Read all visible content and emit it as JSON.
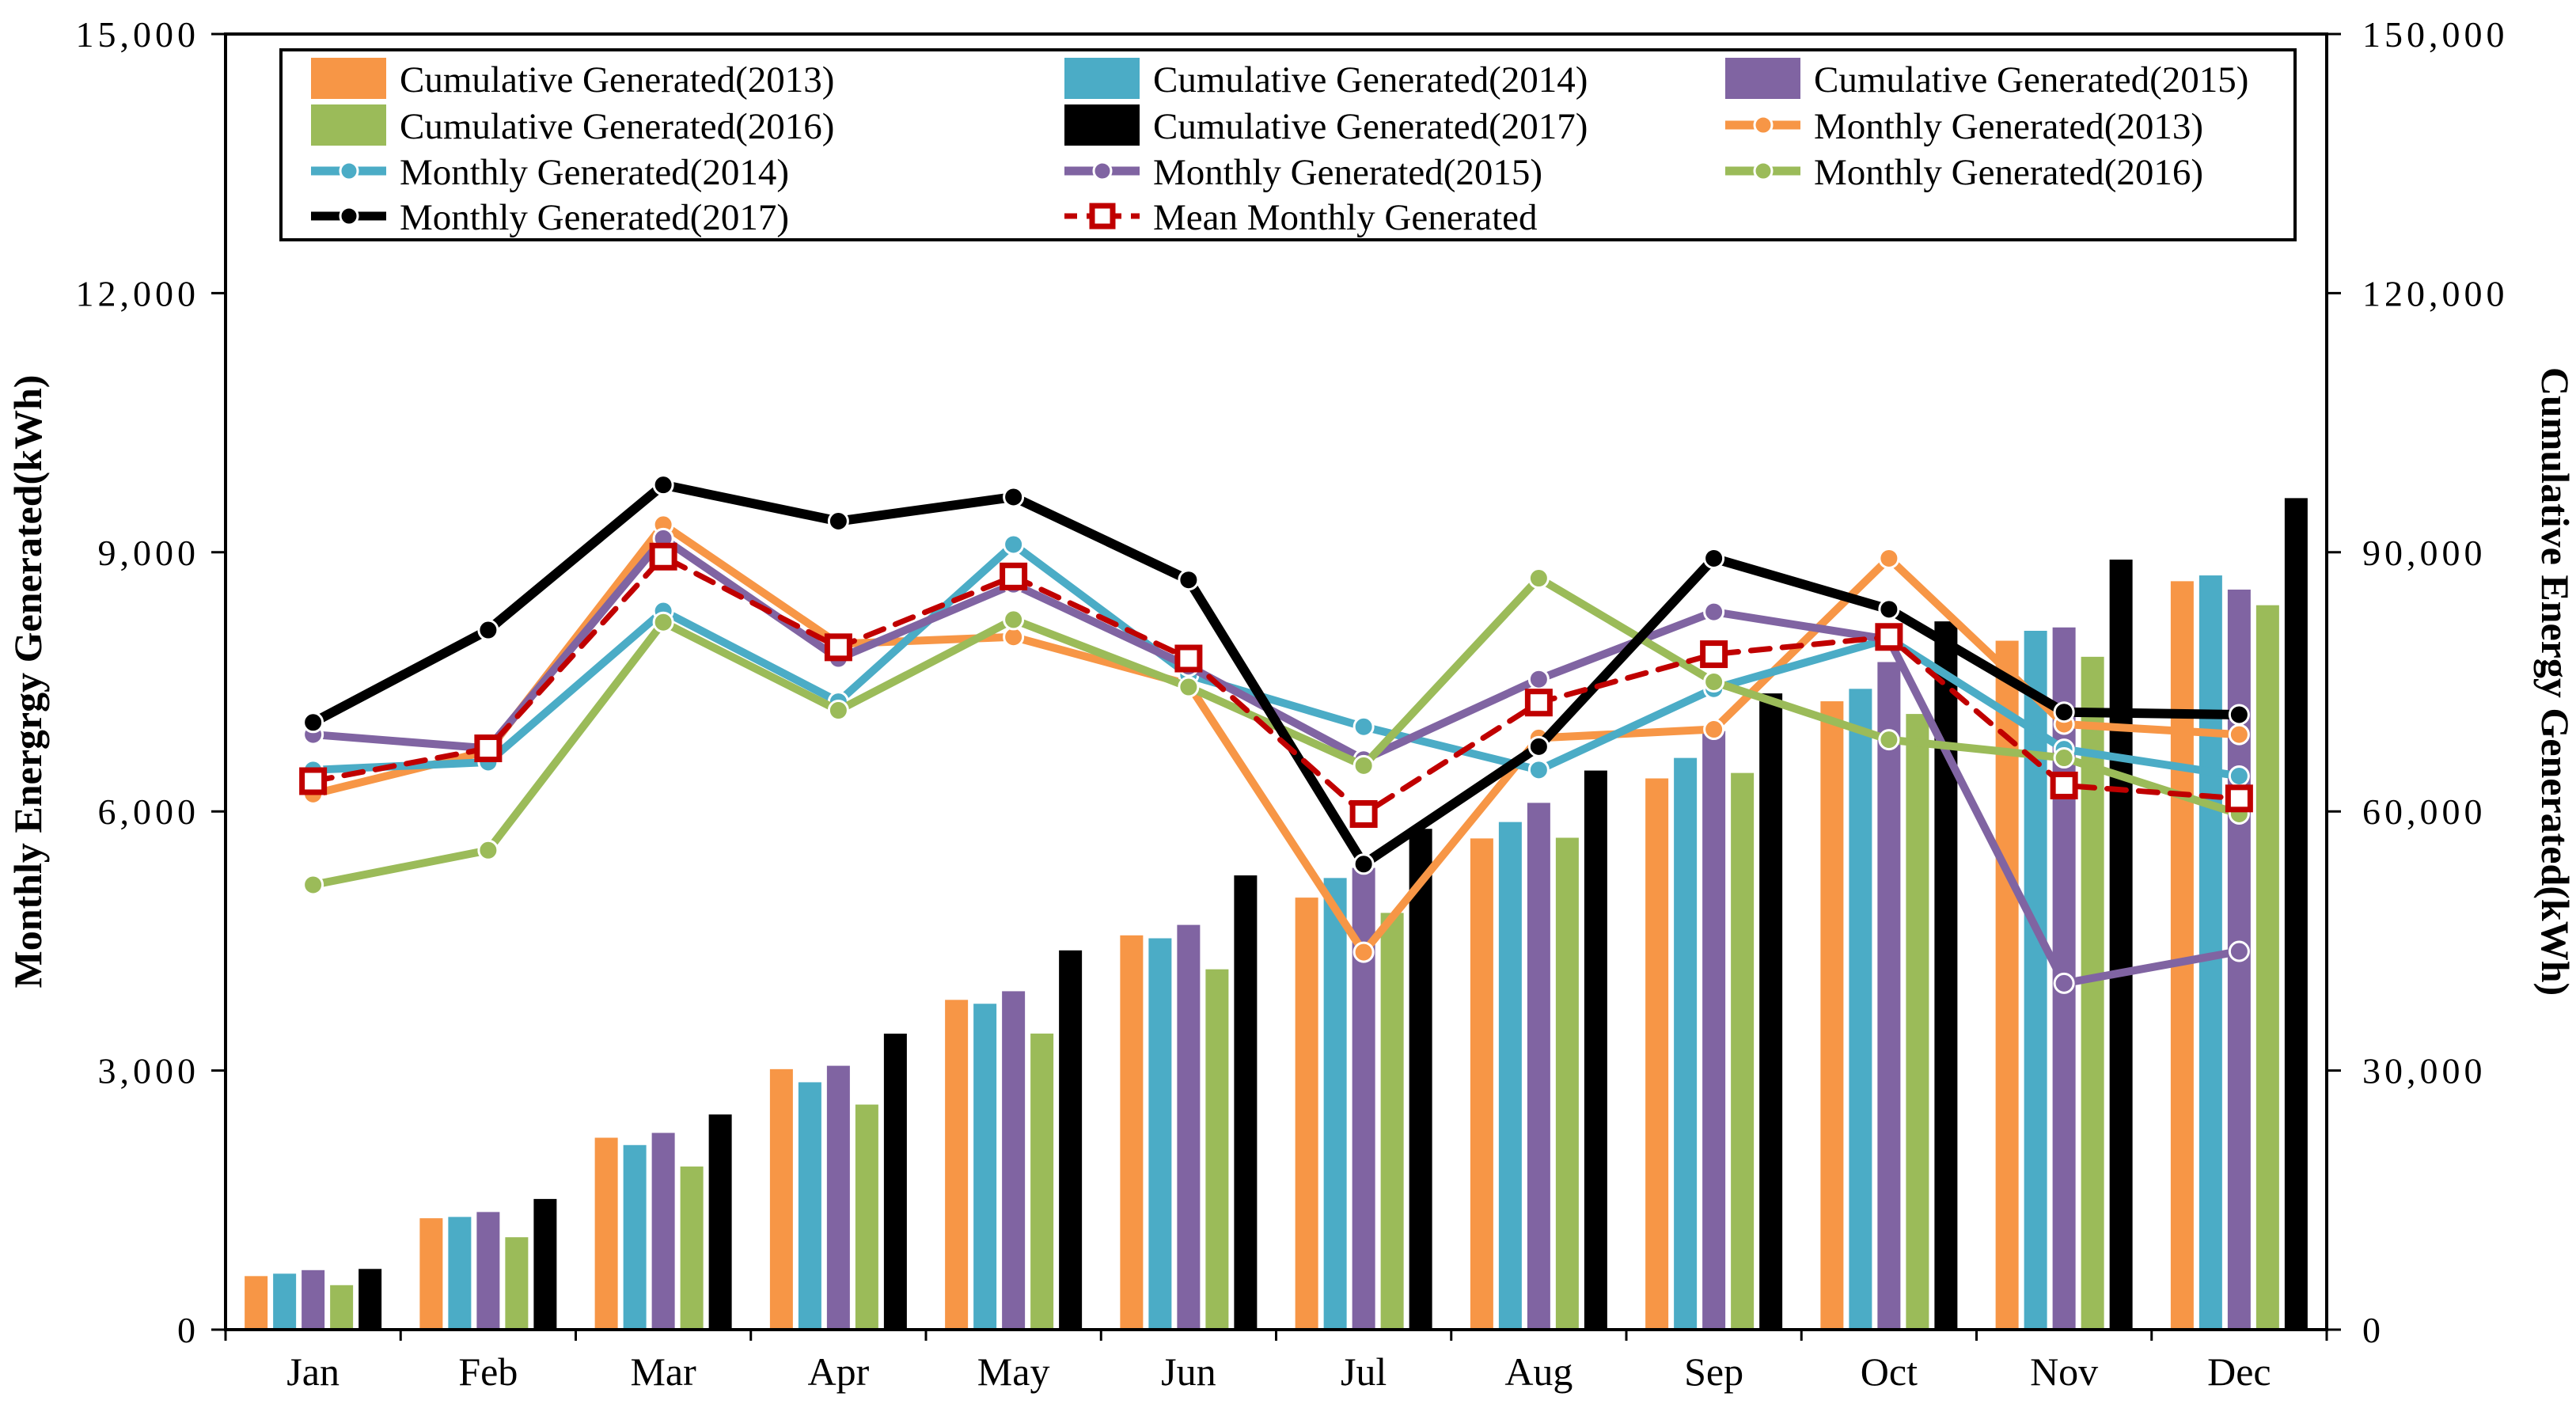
{
  "figure": {
    "background": "#FFFFFF"
  },
  "colors": {
    "y2013": "#F79646",
    "y2014": "#4BACC6",
    "y2015": "#8064A2",
    "y2016": "#9BBB59",
    "y2017": "#000000",
    "mean": "#C00000",
    "axis": "#000000"
  },
  "legend": {
    "rows": 4,
    "items": [
      {
        "label": "Cumulative Generated(2013)",
        "swatch": "bar",
        "color": "#F79646",
        "row": 0,
        "col": 0
      },
      {
        "label": "Cumulative Generated(2014)",
        "swatch": "bar",
        "color": "#4BACC6",
        "row": 0,
        "col": 1
      },
      {
        "label": "Cumulative Generated(2015)",
        "swatch": "bar",
        "color": "#8064A2",
        "row": 0,
        "col": 2
      },
      {
        "label": "Cumulative Generated(2016)",
        "swatch": "bar",
        "color": "#9BBB59",
        "row": 1,
        "col": 0
      },
      {
        "label": "Cumulative Generated(2017)",
        "swatch": "bar",
        "color": "#000000",
        "row": 1,
        "col": 1
      },
      {
        "label": "Monthly Generated(2013)",
        "swatch": "line",
        "color": "#F79646",
        "row": 1,
        "col": 2
      },
      {
        "label": "Monthly Generated(2014)",
        "swatch": "line",
        "color": "#4BACC6",
        "row": 2,
        "col": 0
      },
      {
        "label": "Monthly Generated(2015)",
        "swatch": "line",
        "color": "#8064A2",
        "row": 2,
        "col": 1
      },
      {
        "label": "Monthly Generated(2016)",
        "swatch": "line",
        "color": "#9BBB59",
        "row": 2,
        "col": 2
      },
      {
        "label": "Monthly Generated(2017)",
        "swatch": "line",
        "color": "#000000",
        "row": 3,
        "col": 0
      },
      {
        "label": "Mean Monthly Generated",
        "swatch": "mean",
        "color": "#C00000",
        "row": 3,
        "col": 1
      }
    ]
  },
  "chart_data": {
    "type": "combo bar+line",
    "categories": [
      "Jan",
      "Feb",
      "Mar",
      "Apr",
      "May",
      "Jun",
      "Jul",
      "Aug",
      "Sep",
      "Oct",
      "Nov",
      "Dec"
    ],
    "left_axis": {
      "label": "Monthly Energrgy Generated(kWh)",
      "min": 0,
      "max": 15000,
      "tick_step": 3000,
      "tick_labels": [
        "0",
        "3,000",
        "6,000",
        "9,000",
        "12,000",
        "15,000"
      ]
    },
    "right_axis": {
      "label": "Cumulative Energy Generated(kWh)",
      "min": 0,
      "max": 150000,
      "tick_step": 30000,
      "tick_labels": [
        "0",
        "30,000",
        "60,000",
        "90,000",
        "120,000",
        "150,000"
      ]
    },
    "grid": false,
    "legend_position": "top-inside",
    "bar_series": [
      {
        "name": "Cumulative Generated(2013)",
        "axis": "right",
        "color": "#F79646",
        "values": [
          6200,
          12900,
          22220,
          30160,
          38180,
          45650,
          50020,
          56870,
          63820,
          72750,
          79760,
          86650
        ]
      },
      {
        "name": "Cumulative Generated(2014)",
        "axis": "right",
        "color": "#4BACC6",
        "values": [
          6480,
          13050,
          21370,
          28640,
          37730,
          45310,
          52290,
          58770,
          66190,
          74190,
          80910,
          87320
        ]
      },
      {
        "name": "Cumulative Generated(2015)",
        "axis": "right",
        "color": "#8064A2",
        "values": [
          6890,
          13620,
          22780,
          30550,
          39180,
          46860,
          53460,
          60990,
          69300,
          77290,
          81300,
          85680
        ]
      },
      {
        "name": "Cumulative Generated(2016)",
        "axis": "right",
        "color": "#9BBB59",
        "values": [
          5150,
          10700,
          18890,
          26060,
          34280,
          41720,
          48250,
          56950,
          64450,
          71280,
          77900,
          83870
        ]
      },
      {
        "name": "Cumulative Generated(2017)",
        "axis": "right",
        "color": "#000000",
        "values": [
          7030,
          15130,
          24910,
          34270,
          43910,
          52590,
          57980,
          64730,
          73660,
          82000,
          89150,
          96270
        ]
      }
    ],
    "line_series": [
      {
        "name": "Monthly Generated(2013)",
        "axis": "left",
        "color": "#F79646",
        "style": "solid",
        "marker": "circle",
        "width": 10,
        "values": [
          6200,
          6700,
          9320,
          7940,
          8020,
          7470,
          4370,
          6850,
          6950,
          8930,
          7010,
          6890
        ]
      },
      {
        "name": "Monthly Generated(2014)",
        "axis": "left",
        "color": "#4BACC6",
        "style": "solid",
        "marker": "circle",
        "width": 10,
        "values": [
          6480,
          6570,
          8320,
          7270,
          9090,
          7580,
          6980,
          6480,
          7420,
          8000,
          6720,
          6410
        ]
      },
      {
        "name": "Monthly Generated(2015)",
        "axis": "left",
        "color": "#8064A2",
        "style": "solid",
        "marker": "circle",
        "width": 10,
        "values": [
          6890,
          6730,
          9160,
          7770,
          8630,
          7680,
          6600,
          7530,
          8310,
          7990,
          4010,
          4380
        ]
      },
      {
        "name": "Monthly Generated(2016)",
        "axis": "left",
        "color": "#9BBB59",
        "style": "solid",
        "marker": "circle",
        "width": 10,
        "values": [
          5150,
          5550,
          8190,
          7170,
          8220,
          7440,
          6530,
          8700,
          7500,
          6830,
          6620,
          5970
        ]
      },
      {
        "name": "Monthly Generated(2017)",
        "axis": "left",
        "color": "#000000",
        "style": "solid",
        "marker": "circle",
        "width": 12,
        "values": [
          7030,
          8100,
          9780,
          9360,
          9640,
          8680,
          5390,
          6750,
          8930,
          8340,
          7150,
          7120
        ]
      },
      {
        "name": "Mean Monthly Generated",
        "axis": "left",
        "color": "#C00000",
        "style": "dashed",
        "marker": "open-square",
        "width": 7,
        "values": [
          6350,
          6730,
          8950,
          7900,
          8720,
          7770,
          5970,
          7260,
          7820,
          8020,
          6300,
          6150
        ]
      }
    ]
  }
}
